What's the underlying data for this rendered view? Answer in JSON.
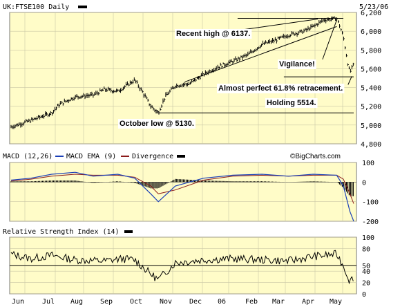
{
  "chart_data": [
    {
      "type": "candlestick",
      "title": "UK:FTSE100 Daily",
      "date": "5/23/06",
      "ylim": [
        4800,
        6200
      ],
      "yticks": [
        "6,200",
        "6,000",
        "5,800",
        "5,600",
        "5,400",
        "5,200",
        "5,000",
        "4,800"
      ],
      "xticks": [
        "Jun",
        "Jul",
        "Aug",
        "Sep",
        "Oct",
        "Nov",
        "Dec",
        "06",
        "Feb",
        "Mar",
        "Apr",
        "May"
      ],
      "series": [
        {
          "name": "FTSE100",
          "x": [
            "2005-05-25",
            "2005-06-15",
            "2005-07-07",
            "2005-07-15",
            "2005-08-01",
            "2005-08-20",
            "2005-09-01",
            "2005-09-15",
            "2005-10-03",
            "2005-10-12",
            "2005-10-20",
            "2005-10-28",
            "2005-11-04",
            "2005-11-15",
            "2005-11-30",
            "2005-12-15",
            "2005-12-30",
            "2006-01-15",
            "2006-01-31",
            "2006-02-15",
            "2006-02-28",
            "2006-03-15",
            "2006-03-31",
            "2006-04-10",
            "2006-04-21",
            "2006-05-05",
            "2006-05-08",
            "2006-05-12",
            "2006-05-17",
            "2006-05-19",
            "2006-05-23"
          ],
          "close": [
            4980,
            5050,
            5130,
            5220,
            5300,
            5320,
            5380,
            5360,
            5480,
            5340,
            5200,
            5130,
            5300,
            5420,
            5440,
            5540,
            5620,
            5680,
            5750,
            5860,
            5900,
            5960,
            6000,
            6050,
            6120,
            6137,
            6060,
            5940,
            5640,
            5560,
            5650
          ]
        }
      ],
      "annotations": [
        "Recent high @ 6137.",
        "Vigilance!",
        "Almost perfect 61.8% retracement.",
        "Holding 5514.",
        "October low @ 5130."
      ]
    },
    {
      "type": "line",
      "title": "MACD (12,26)",
      "legend": [
        "MACD EMA (9)",
        "Divergence"
      ],
      "ylim": [
        -200,
        100
      ],
      "yticks": [
        "100",
        "0",
        "-100",
        "-200"
      ],
      "series": [
        {
          "name": "MACD (12,26)",
          "color": "#1a3fb8"
        },
        {
          "name": "MACD EMA (9)",
          "color": "#1a3fb8"
        },
        {
          "name": "Divergence",
          "color": "#000000"
        }
      ],
      "x": [
        "2005-05-25",
        "2005-06-15",
        "2005-07-07",
        "2005-08-01",
        "2005-08-20",
        "2005-09-15",
        "2005-10-03",
        "2005-10-20",
        "2005-10-28",
        "2005-11-15",
        "2005-12-15",
        "2006-01-15",
        "2006-02-15",
        "2006-03-15",
        "2006-04-10",
        "2006-05-05",
        "2006-05-12",
        "2006-05-19",
        "2006-05-23"
      ],
      "macd": [
        10,
        20,
        40,
        50,
        30,
        40,
        20,
        -60,
        -100,
        -20,
        20,
        35,
        40,
        30,
        40,
        35,
        -20,
        -150,
        -200
      ],
      "ema": [
        5,
        15,
        30,
        40,
        35,
        35,
        25,
        -20,
        -60,
        -40,
        10,
        30,
        35,
        30,
        35,
        35,
        15,
        -60,
        -110
      ]
    },
    {
      "type": "line",
      "title": "Relative Strength Index (14)",
      "ylim": [
        0,
        100
      ],
      "yticks": [
        "100",
        "80",
        "50",
        "40",
        "20",
        "0"
      ],
      "reference_line": 50,
      "x": [
        "2005-05-25",
        "2005-06-15",
        "2005-07-07",
        "2005-08-01",
        "2005-09-01",
        "2005-09-20",
        "2005-10-03",
        "2005-10-20",
        "2005-10-28",
        "2005-11-15",
        "2005-12-15",
        "2006-01-15",
        "2006-02-15",
        "2006-03-15",
        "2006-04-10",
        "2006-05-05",
        "2006-05-12",
        "2006-05-19",
        "2006-05-23"
      ],
      "values": [
        70,
        62,
        68,
        60,
        58,
        62,
        60,
        35,
        25,
        55,
        60,
        62,
        60,
        58,
        66,
        70,
        50,
        22,
        30
      ]
    }
  ],
  "watermark": "©BigCharts.com",
  "colors": {
    "panel_bg": "#fffcc8",
    "grid": "#b8b8a8",
    "price": "#000000",
    "macd": "#1a3fb8",
    "divergence": "#000000"
  }
}
